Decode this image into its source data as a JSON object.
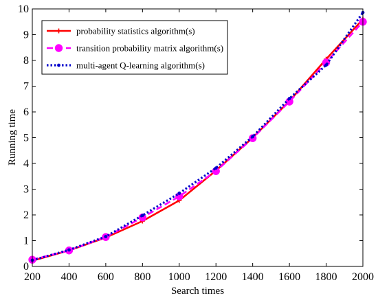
{
  "chart_data": {
    "type": "line",
    "title": "",
    "xlabel": "Search times",
    "ylabel": "Running time",
    "xlim": [
      200,
      2000
    ],
    "ylim": [
      0,
      10
    ],
    "x": [
      200,
      400,
      600,
      800,
      1000,
      1200,
      1400,
      1600,
      1800,
      2000
    ],
    "xticks": [
      "200",
      "400",
      "600",
      "800",
      "1000",
      "1200",
      "1400",
      "1600",
      "1800",
      "2000"
    ],
    "yticks": [
      "0",
      "1",
      "2",
      "3",
      "4",
      "5",
      "6",
      "7",
      "8",
      "9",
      "10"
    ],
    "grid": false,
    "legend_position": "top-left",
    "series": [
      {
        "name": "probability statistics algorithm(s)",
        "color": "#ff0000",
        "line_style": "solid",
        "marker": "plus",
        "values": [
          0.22,
          0.62,
          1.12,
          1.76,
          2.56,
          3.72,
          5.0,
          6.42,
          8.05,
          9.6
        ]
      },
      {
        "name": "transition probability matrix algorithm(s)",
        "color": "#ff00ff",
        "line_style": "dashed",
        "marker": "circle",
        "values": [
          0.26,
          0.62,
          1.14,
          1.9,
          2.72,
          3.7,
          4.98,
          6.4,
          7.92,
          9.5
        ]
      },
      {
        "name": "multi-agent Q-learning algorithm(s)",
        "color": "#0000cc",
        "line_style": "dotted",
        "marker": "point",
        "values": [
          0.24,
          0.64,
          1.16,
          1.98,
          2.84,
          3.82,
          5.04,
          6.52,
          7.82,
          9.86
        ]
      }
    ]
  }
}
